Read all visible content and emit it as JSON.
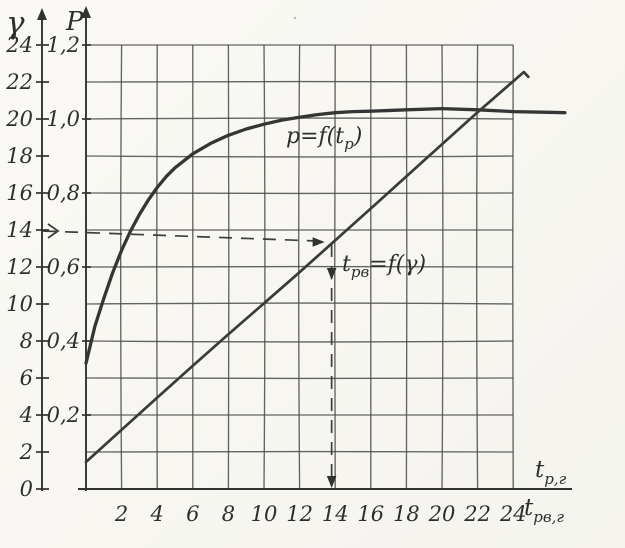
{
  "figure": {
    "paper_color": "#f9f8f4",
    "ink_color": "#3a3a3a",
    "gamma_axis": {
      "symbol": "γ",
      "tick_labels": [
        "0",
        "2",
        "4",
        "6",
        "8",
        "10",
        "12",
        "14",
        "16",
        "18",
        "20",
        "22",
        "24"
      ]
    },
    "p_axis": {
      "symbol": "P",
      "tick_labels": [
        "0,2",
        "0,4",
        "0,6",
        "0,8",
        "1,0",
        "1,2"
      ]
    },
    "x_axis": {
      "tick_labels": [
        "2",
        "4",
        "6",
        "8",
        "10",
        "12",
        "14",
        "16",
        "18",
        "20",
        "22",
        "24"
      ],
      "label_tp": {
        "base": "t",
        "sub": "р,г"
      },
      "label_tpv": {
        "base": "t",
        "sub": "рв,г"
      }
    },
    "curve_labels": {
      "p_curve": {
        "pre": "p=f(t",
        "sub": "р",
        "post": ")"
      },
      "tpv_curve": {
        "pre": "t",
        "sub": "рв",
        "post": "=f(γ)"
      }
    }
  },
  "chart_data": {
    "type": "line",
    "title": "",
    "x_axis": {
      "labels": [
        "tр,г",
        "tрв,г"
      ],
      "range": [
        0,
        27
      ],
      "ticks": [
        2,
        4,
        6,
        8,
        10,
        12,
        14,
        16,
        18,
        20,
        22,
        24
      ]
    },
    "y_axis_outer": {
      "label": "γ",
      "range": [
        0,
        26
      ],
      "ticks": [
        0,
        2,
        4,
        6,
        8,
        10,
        12,
        14,
        16,
        18,
        20,
        22,
        24
      ]
    },
    "y_axis_inner": {
      "label": "P",
      "range": [
        0,
        1.25
      ],
      "ticks": [
        0.2,
        0.4,
        0.6,
        0.8,
        1.0,
        1.2
      ],
      "grid_step": 0.1
    },
    "grid": true,
    "series": [
      {
        "name": "p=f(tр)",
        "y_scale": "P",
        "points": [
          [
            0,
            0.34
          ],
          [
            0.5,
            0.44
          ],
          [
            1,
            0.515
          ],
          [
            1.5,
            0.585
          ],
          [
            2,
            0.645
          ],
          [
            2.5,
            0.697
          ],
          [
            3,
            0.742
          ],
          [
            3.5,
            0.781
          ],
          [
            4,
            0.815
          ],
          [
            4.5,
            0.844
          ],
          [
            5,
            0.868
          ],
          [
            6,
            0.906
          ],
          [
            7,
            0.934
          ],
          [
            8,
            0.956
          ],
          [
            9,
            0.973
          ],
          [
            10,
            0.986
          ],
          [
            11,
            0.997
          ],
          [
            12,
            1.005
          ],
          [
            13,
            1.012
          ],
          [
            14,
            1.017
          ],
          [
            15,
            1.02
          ],
          [
            16,
            1.021
          ],
          [
            18,
            1.025
          ],
          [
            20,
            1.028
          ],
          [
            22,
            1.025
          ],
          [
            24,
            1.02
          ],
          [
            26,
            1.018
          ],
          [
            26.9,
            1.017
          ]
        ]
      },
      {
        "name": "tрв=f(γ)",
        "y_scale": "P",
        "points": [
          [
            0,
            0.073
          ],
          [
            2,
            0.16
          ],
          [
            4,
            0.247
          ],
          [
            6,
            0.333
          ],
          [
            8,
            0.418
          ],
          [
            10,
            0.502
          ],
          [
            12,
            0.586
          ],
          [
            14,
            0.672
          ],
          [
            16,
            0.758
          ],
          [
            18,
            0.845
          ],
          [
            20,
            0.932
          ],
          [
            22,
            1.018
          ],
          [
            24,
            1.102
          ],
          [
            24.6,
            1.127
          ],
          [
            24.85,
            1.114
          ]
        ]
      }
    ],
    "guide": {
      "gamma": 14,
      "meets_t": 13.8,
      "drops_to_t": 14
    }
  }
}
